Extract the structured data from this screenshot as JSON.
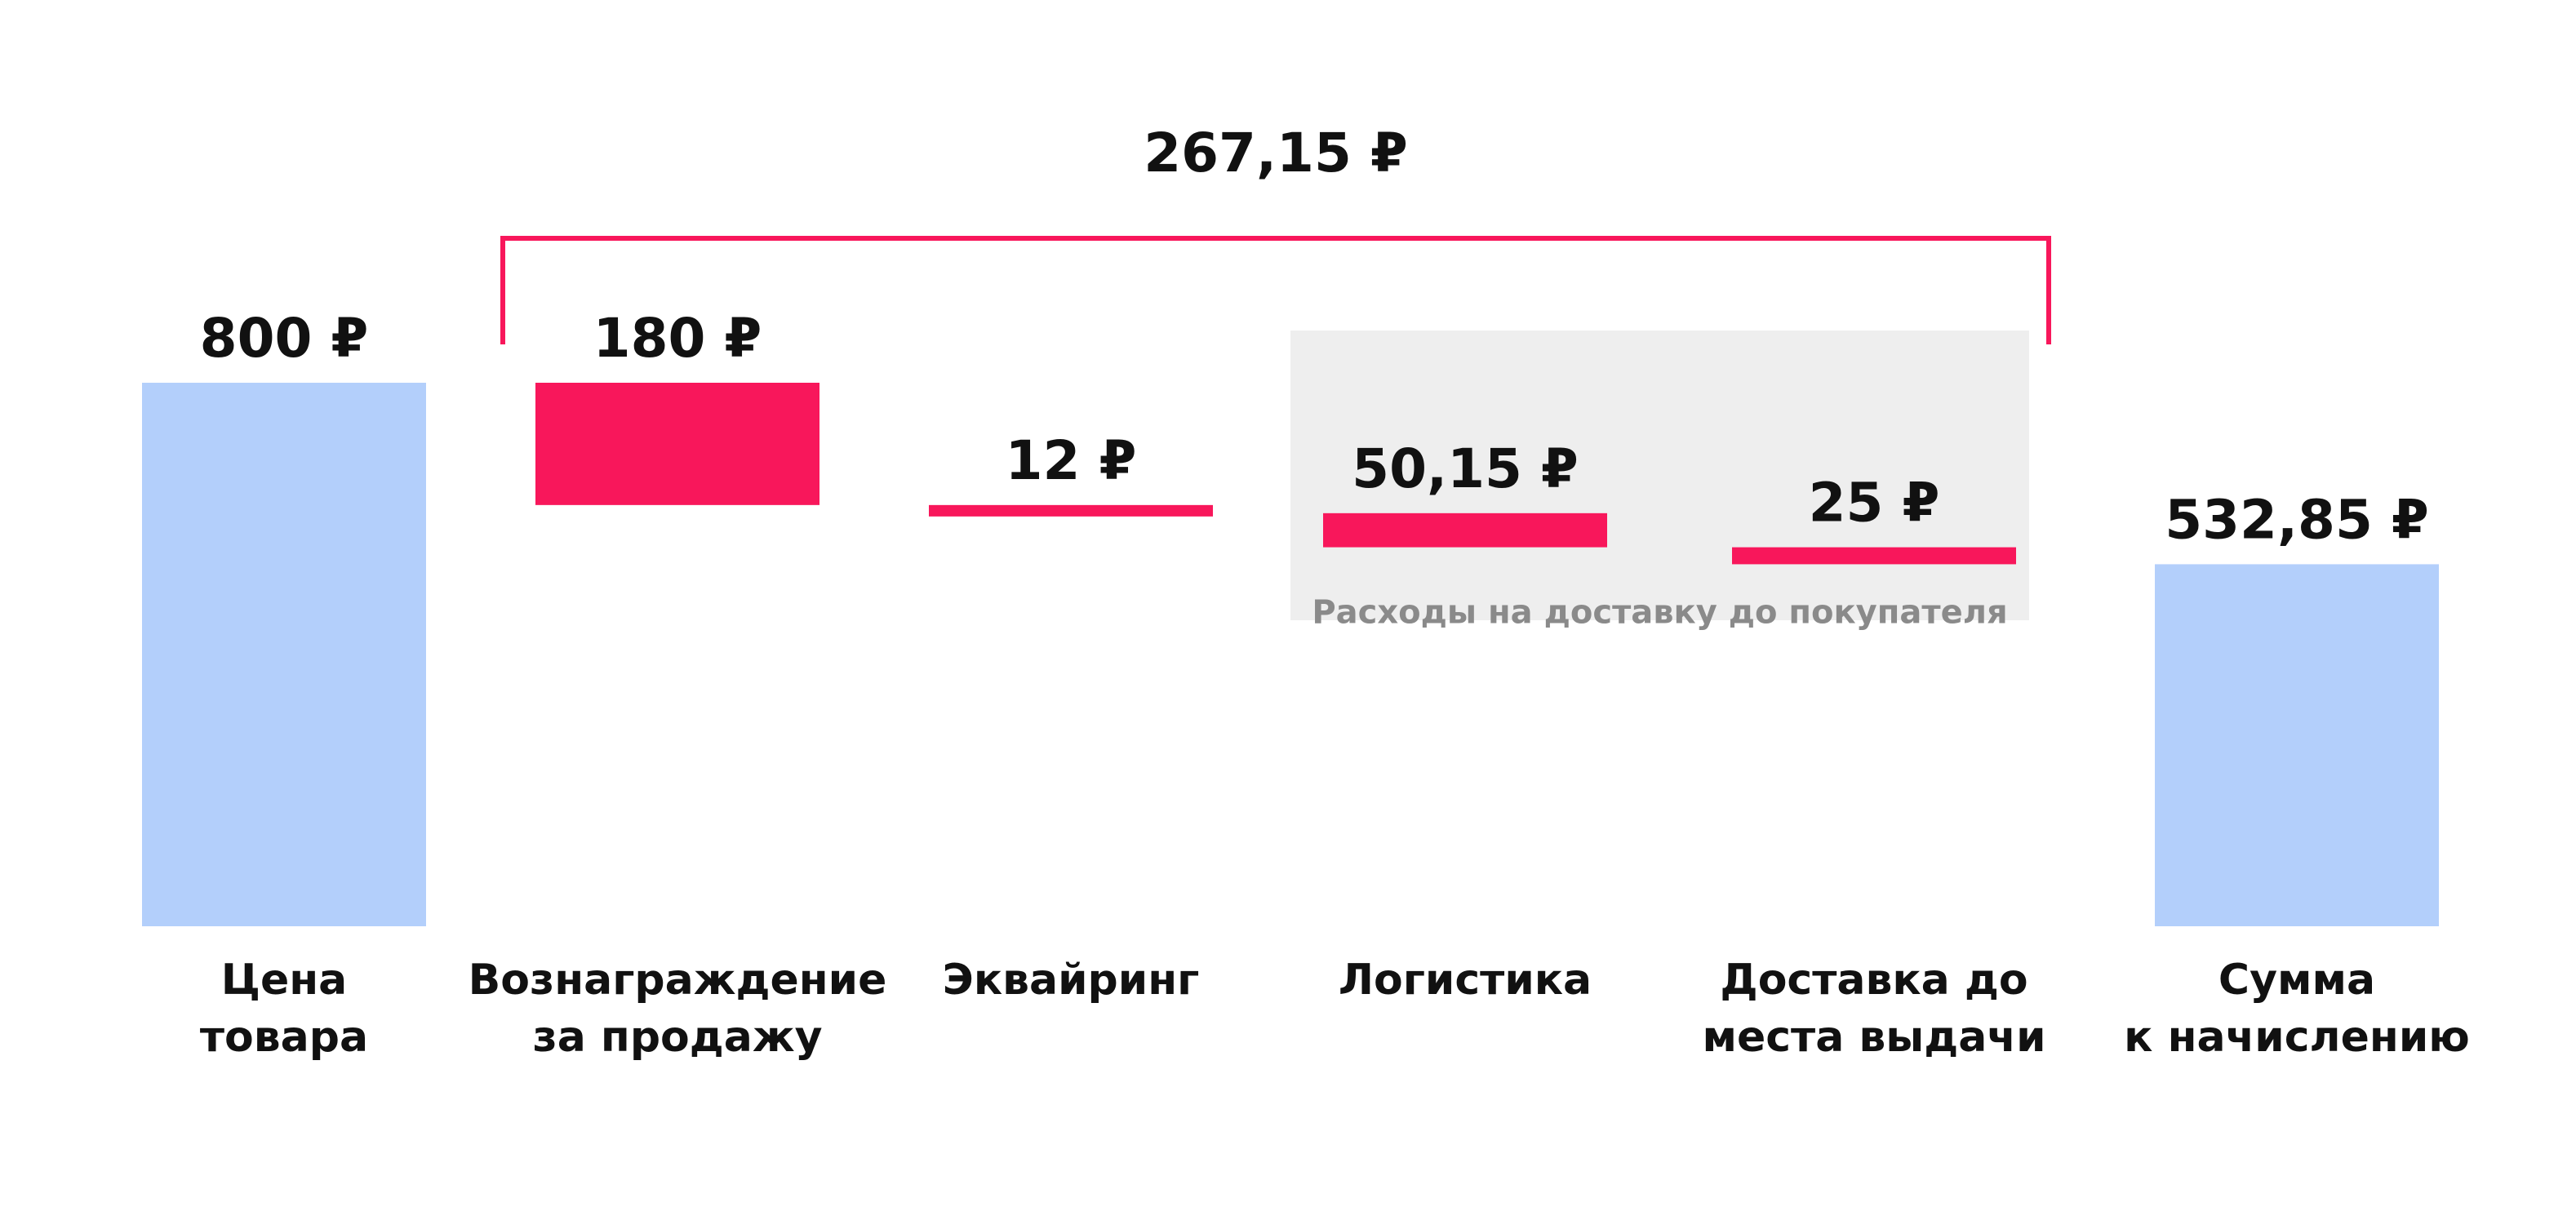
{
  "chart_data": {
    "type": "bar",
    "variant": "waterfall",
    "unit": "₽",
    "ylim": [
      0,
      800
    ],
    "grid": false,
    "colors": {
      "total": "#b3cffb",
      "deduction": "#f8175b",
      "group_background": "#eeeeee",
      "group_text": "#8a8a8a",
      "text": "#111111"
    },
    "bars": [
      {
        "category": [
          "Цена",
          "товара"
        ],
        "value": 800,
        "base": 0,
        "kind": "total",
        "label": "800 ₽"
      },
      {
        "category": [
          "Вознаграждение",
          "за продажу"
        ],
        "value": 180,
        "base": 620,
        "kind": "deduction",
        "label": "180 ₽"
      },
      {
        "category": [
          "Эквайринг"
        ],
        "value": 12,
        "base": 608,
        "kind": "deduction",
        "label": "12 ₽"
      },
      {
        "category": [
          "Логистика"
        ],
        "value": 50.15,
        "base": 557.85,
        "kind": "deduction",
        "label": "50,15 ₽"
      },
      {
        "category": [
          "Доставка до",
          "места выдачи"
        ],
        "value": 25,
        "base": 532.85,
        "kind": "deduction",
        "label": "25 ₽"
      },
      {
        "category": [
          "Сумма",
          "к начислению"
        ],
        "value": 532.85,
        "base": 0,
        "kind": "total",
        "label": "532,85 ₽"
      }
    ],
    "bracket": {
      "label": "267,15 ₽",
      "value": 267.15,
      "from_index": 1,
      "to_index": 4
    },
    "group": {
      "label": "Расходы на доставку до покупателя",
      "from_index": 3,
      "to_index": 4
    }
  }
}
